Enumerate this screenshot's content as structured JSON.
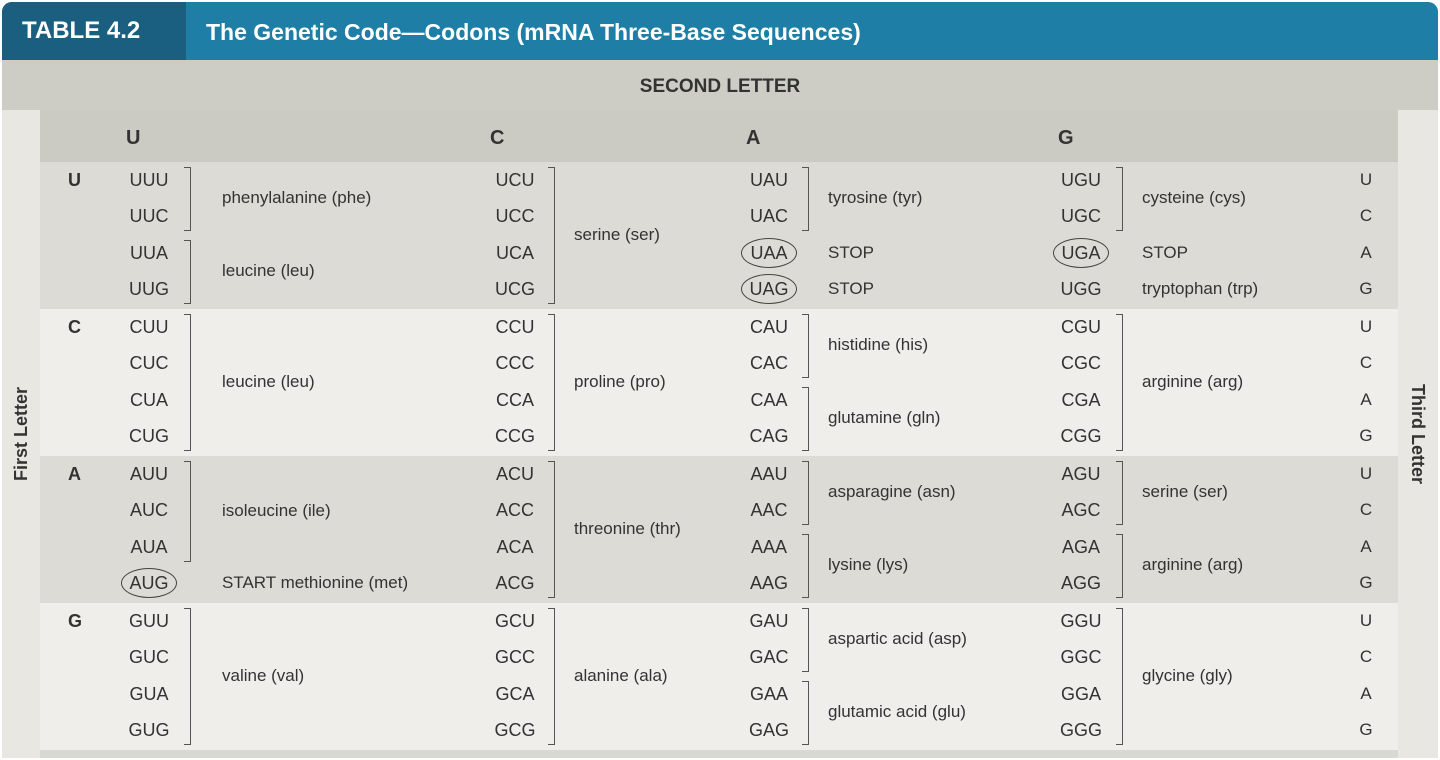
{
  "table_number": "TABLE 4.2",
  "table_title": "The Genetic Code—Codons (mRNA Three-Base Sequences)",
  "second_letter_label": "SECOND LETTER",
  "first_letter_label": "First Letter",
  "third_letter_label": "Third Letter",
  "second_letters": [
    "U",
    "C",
    "A",
    "G"
  ],
  "third_letters": [
    "U",
    "C",
    "A",
    "G"
  ],
  "blocks": [
    {
      "first": "U",
      "shade": "dark",
      "columns": [
        {
          "codons": [
            "UUU",
            "UUC",
            "UUA",
            "UUG"
          ],
          "groups": [
            {
              "name": "phenylalanine (phe)",
              "rows": [
                0,
                1
              ]
            },
            {
              "name": "leucine (leu)",
              "rows": [
                2,
                3
              ]
            }
          ],
          "circled": []
        },
        {
          "codons": [
            "UCU",
            "UCC",
            "UCA",
            "UCG"
          ],
          "groups": [
            {
              "name": "serine (ser)",
              "rows": [
                0,
                3
              ]
            }
          ],
          "circled": []
        },
        {
          "codons": [
            "UAU",
            "UAC",
            "UAA",
            "UAG"
          ],
          "groups": [
            {
              "name": "tyrosine (tyr)",
              "rows": [
                0,
                1
              ]
            },
            {
              "name": "STOP",
              "rows": [
                2,
                2
              ],
              "plain": true
            },
            {
              "name": "STOP",
              "rows": [
                3,
                3
              ],
              "plain": true
            }
          ],
          "circled": [
            2,
            3
          ]
        },
        {
          "codons": [
            "UGU",
            "UGC",
            "UGA",
            "UGG"
          ],
          "groups": [
            {
              "name": "cysteine (cys)",
              "rows": [
                0,
                1
              ]
            },
            {
              "name": "STOP",
              "rows": [
                2,
                2
              ],
              "plain": true
            },
            {
              "name": "tryptophan (trp)",
              "rows": [
                3,
                3
              ],
              "plain": true
            }
          ],
          "circled": [
            2
          ]
        }
      ]
    },
    {
      "first": "C",
      "shade": "light",
      "columns": [
        {
          "codons": [
            "CUU",
            "CUC",
            "CUA",
            "CUG"
          ],
          "groups": [
            {
              "name": "leucine (leu)",
              "rows": [
                0,
                3
              ]
            }
          ],
          "circled": []
        },
        {
          "codons": [
            "CCU",
            "CCC",
            "CCA",
            "CCG"
          ],
          "groups": [
            {
              "name": "proline (pro)",
              "rows": [
                0,
                3
              ]
            }
          ],
          "circled": []
        },
        {
          "codons": [
            "CAU",
            "CAC",
            "CAA",
            "CAG"
          ],
          "groups": [
            {
              "name": "histidine (his)",
              "rows": [
                0,
                1
              ]
            },
            {
              "name": "glutamine (gln)",
              "rows": [
                2,
                3
              ]
            }
          ],
          "circled": []
        },
        {
          "codons": [
            "CGU",
            "CGC",
            "CGA",
            "CGG"
          ],
          "groups": [
            {
              "name": "arginine (arg)",
              "rows": [
                0,
                3
              ]
            }
          ],
          "circled": []
        }
      ]
    },
    {
      "first": "A",
      "shade": "dark",
      "columns": [
        {
          "codons": [
            "AUU",
            "AUC",
            "AUA",
            "AUG"
          ],
          "groups": [
            {
              "name": "isoleucine (ile)",
              "rows": [
                0,
                2
              ]
            },
            {
              "name": "START methionine (met)",
              "rows": [
                3,
                3
              ],
              "plain": true
            }
          ],
          "circled": [
            3
          ]
        },
        {
          "codons": [
            "ACU",
            "ACC",
            "ACA",
            "ACG"
          ],
          "groups": [
            {
              "name": "threonine (thr)",
              "rows": [
                0,
                3
              ]
            }
          ],
          "circled": []
        },
        {
          "codons": [
            "AAU",
            "AAC",
            "AAA",
            "AAG"
          ],
          "groups": [
            {
              "name": "asparagine (asn)",
              "rows": [
                0,
                1
              ]
            },
            {
              "name": "lysine (lys)",
              "rows": [
                2,
                3
              ]
            }
          ],
          "circled": []
        },
        {
          "codons": [
            "AGU",
            "AGC",
            "AGA",
            "AGG"
          ],
          "groups": [
            {
              "name": "serine (ser)",
              "rows": [
                0,
                1
              ]
            },
            {
              "name": "arginine (arg)",
              "rows": [
                2,
                3
              ]
            }
          ],
          "circled": []
        }
      ]
    },
    {
      "first": "G",
      "shade": "light",
      "columns": [
        {
          "codons": [
            "GUU",
            "GUC",
            "GUA",
            "GUG"
          ],
          "groups": [
            {
              "name": "valine (val)",
              "rows": [
                0,
                3
              ]
            }
          ],
          "circled": []
        },
        {
          "codons": [
            "GCU",
            "GCC",
            "GCA",
            "GCG"
          ],
          "groups": [
            {
              "name": "alanine (ala)",
              "rows": [
                0,
                3
              ]
            }
          ],
          "circled": []
        },
        {
          "codons": [
            "GAU",
            "GAC",
            "GAA",
            "GAG"
          ],
          "groups": [
            {
              "name": "aspartic acid (asp)",
              "rows": [
                0,
                1
              ]
            },
            {
              "name": "glutamic acid (glu)",
              "rows": [
                2,
                3
              ]
            }
          ],
          "circled": []
        },
        {
          "codons": [
            "GGU",
            "GGC",
            "GGA",
            "GGG"
          ],
          "groups": [
            {
              "name": "glycine (gly)",
              "rows": [
                0,
                3
              ]
            }
          ],
          "circled": []
        }
      ]
    }
  ],
  "colors": {
    "title_bar": "#1f7ea6",
    "table_number_bg": "#1a5f80",
    "header_band": "#cdcdc6",
    "block_dark": "#dcdbd5",
    "block_light": "#efeeea"
  }
}
